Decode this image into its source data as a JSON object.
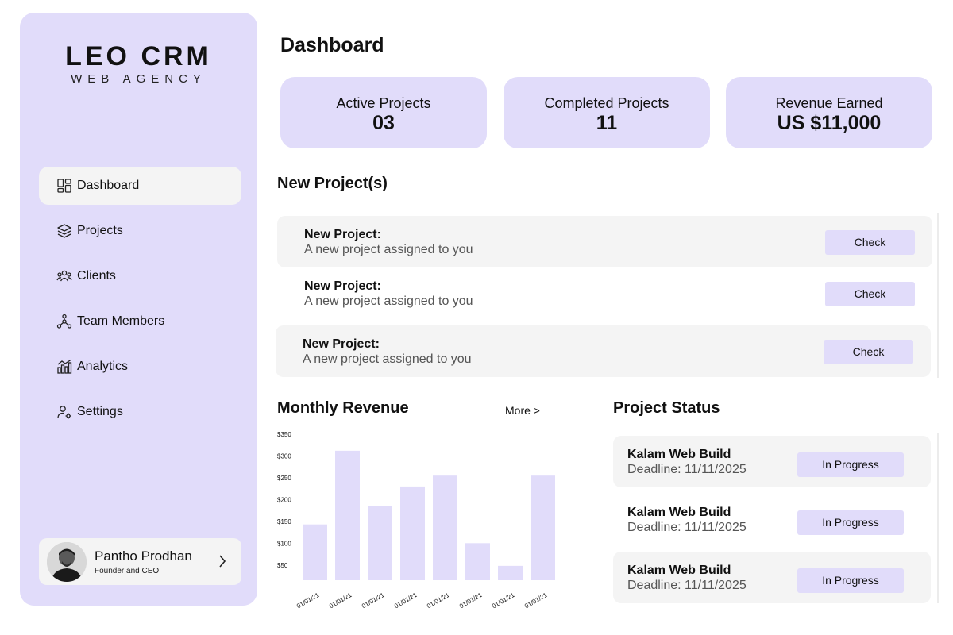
{
  "brand": {
    "title": "LEO CRM",
    "subtitle": "WEB AGENCY"
  },
  "nav": [
    {
      "label": "Dashboard",
      "icon": "grid-icon",
      "active": true
    },
    {
      "label": "Projects",
      "icon": "layers-icon"
    },
    {
      "label": "Clients",
      "icon": "users-icon"
    },
    {
      "label": "Team Members",
      "icon": "network-icon"
    },
    {
      "label": "Analytics",
      "icon": "bar-chart-icon"
    },
    {
      "label": "Settings",
      "icon": "user-settings-icon"
    }
  ],
  "profile": {
    "name": "Pantho Prodhan",
    "role": "Founder and CEO"
  },
  "page_title": "Dashboard",
  "stats": [
    {
      "label": "Active Projects",
      "value": "03"
    },
    {
      "label": "Completed Projects",
      "value": "11"
    },
    {
      "label": "Revenue Earned",
      "value": "US $11,000"
    }
  ],
  "new_projects": {
    "title": "New Project(s)",
    "items": [
      {
        "title": "New Project:",
        "desc": "A new project assigned to you",
        "button": "Check"
      },
      {
        "title": "New Project:",
        "desc": "A new project assigned to you",
        "button": "Check"
      },
      {
        "title": "New Project:",
        "desc": "A new project assigned to you",
        "button": "Check"
      }
    ]
  },
  "revenue": {
    "title": "Monthly Revenue",
    "more": "More >"
  },
  "chart_data": {
    "type": "bar",
    "title": "Monthly Revenue",
    "categories": [
      "01/01/21",
      "01/01/21",
      "01/01/21",
      "01/01/21",
      "01/01/21",
      "01/01/21",
      "01/01/21",
      "01/01/21"
    ],
    "values": [
      143,
      312,
      186,
      230,
      255,
      100,
      48,
      255
    ],
    "y_ticks": [
      "$50",
      "$100",
      "$150",
      "$200",
      "$250",
      "$300",
      "$350"
    ],
    "ylim": [
      15,
      350
    ],
    "grid": false,
    "bar_color": "#e1dcfa"
  },
  "project_status": {
    "title": "Project Status",
    "items": [
      {
        "name": "Kalam Web Build",
        "deadline": "Deadline: 11/11/2025",
        "status": "In Progress"
      },
      {
        "name": "Kalam Web Build",
        "deadline": "Deadline: 11/11/2025",
        "status": "In Progress"
      },
      {
        "name": "Kalam Web Build",
        "deadline": "Deadline: 11/11/2025",
        "status": "In Progress"
      }
    ]
  },
  "colors": {
    "accent": "#e1dcfa",
    "row_shade": "#f4f4f4"
  }
}
